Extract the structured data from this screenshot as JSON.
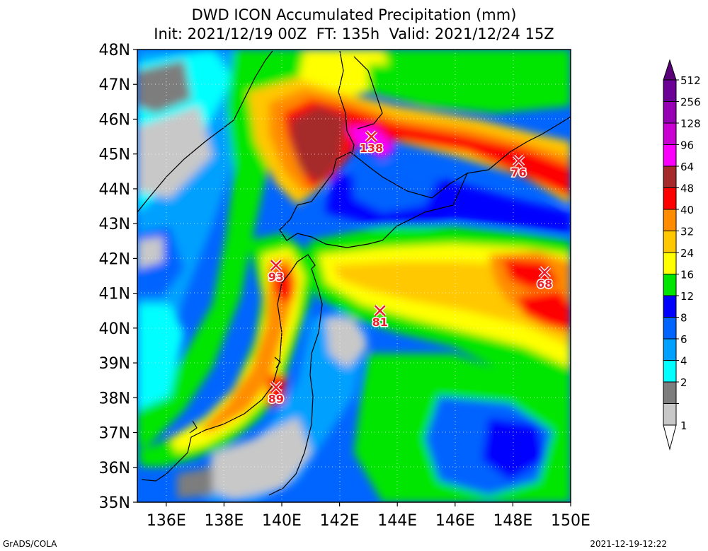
{
  "title_line1": "DWD ICON Accumulated Precipitation (mm)",
  "title_line2": "Init: 2021/12/19 00Z  FT: 135h  Valid: 2021/12/24 15Z",
  "lat_labels": [
    "48N",
    "47N",
    "46N",
    "45N",
    "44N",
    "43N",
    "42N",
    "41N",
    "40N",
    "39N",
    "38N",
    "37N",
    "36N",
    "35N"
  ],
  "lon_labels": [
    "136E",
    "138E",
    "140E",
    "142E",
    "144E",
    "146E",
    "148E",
    "150E"
  ],
  "legend": {
    "levels": [
      "512",
      "256",
      "128",
      "96",
      "64",
      "48",
      "40",
      "32",
      "24",
      "16",
      "12",
      "8",
      "6",
      "4",
      "2",
      "1"
    ],
    "colors": [
      "#6a0096",
      "#9600b4",
      "#c800d2",
      "#fa00fa",
      "#a52a2a",
      "#ff0000",
      "#ff8c00",
      "#ffc800",
      "#ffff00",
      "#00e600",
      "#0000ff",
      "#0064ff",
      "#00a0ff",
      "#00ffff",
      "#7d7d7d",
      "#c8c8c8"
    ]
  },
  "markers": [
    {
      "value": "138",
      "lon": 143.1,
      "lat": 45.5
    },
    {
      "value": "76",
      "lon": 148.2,
      "lat": 44.8
    },
    {
      "value": "93",
      "lon": 139.8,
      "lat": 41.8
    },
    {
      "value": "68",
      "lon": 149.1,
      "lat": 41.6
    },
    {
      "value": "81",
      "lon": 143.4,
      "lat": 40.5
    },
    {
      "value": "89",
      "lon": 139.8,
      "lat": 38.3
    }
  ],
  "footer_left": "GrADS/COLA",
  "footer_right": "2021-12-19-12:22"
}
